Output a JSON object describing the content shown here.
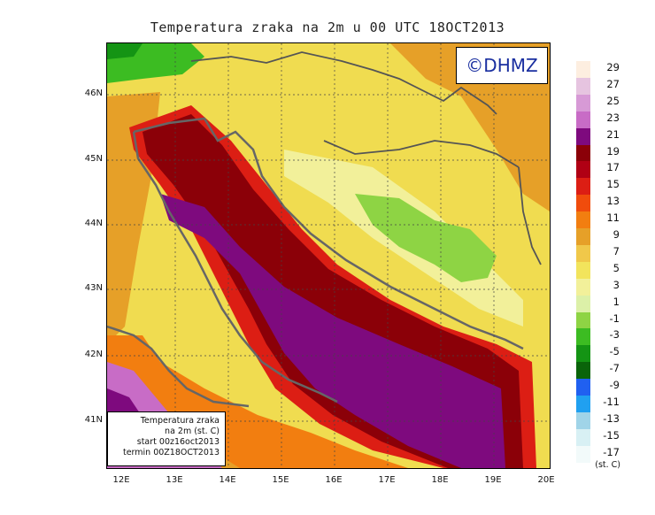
{
  "title": "Temperatura zraka na 2m u 00 UTC 18OCT2013",
  "logo": "©DHMZ",
  "info_box": {
    "line1": "Temperatura zraka",
    "line2": "na 2m (st. C)",
    "line3": "start 00z16oct2013",
    "line4": "termin 00Z18OCT2013"
  },
  "axes": {
    "y_ticks": [
      "46N",
      "45N",
      "44N",
      "43N",
      "42N",
      "41N"
    ],
    "x_ticks": [
      "12E",
      "13E",
      "14E",
      "15E",
      "16E",
      "17E",
      "18E",
      "19E",
      "20E"
    ]
  },
  "legend": {
    "unit": "(st. C)",
    "labels": [
      "29",
      "27",
      "25",
      "23",
      "21",
      "19",
      "17",
      "15",
      "13",
      "11",
      "9",
      "7",
      "5",
      "3",
      "1",
      "-1",
      "-3",
      "-5",
      "-7",
      "-9",
      "-11",
      "-13",
      "-15",
      "-17"
    ],
    "colors": [
      "#fdeee0",
      "#e6c4e0",
      "#d79ad6",
      "#c86cc6",
      "#7e0a7e",
      "#8b0008",
      "#b00014",
      "#dc1e14",
      "#f04c0c",
      "#f27e10",
      "#e6a028",
      "#f0c84a",
      "#f2e45c",
      "#f2f09a",
      "#dcf0a8",
      "#8ed444",
      "#3cbc22",
      "#149414",
      "#0a640a",
      "#2060f0",
      "#20a0f0",
      "#a0d4e8",
      "#d8f0f4",
      "#f2fafa"
    ]
  }
}
